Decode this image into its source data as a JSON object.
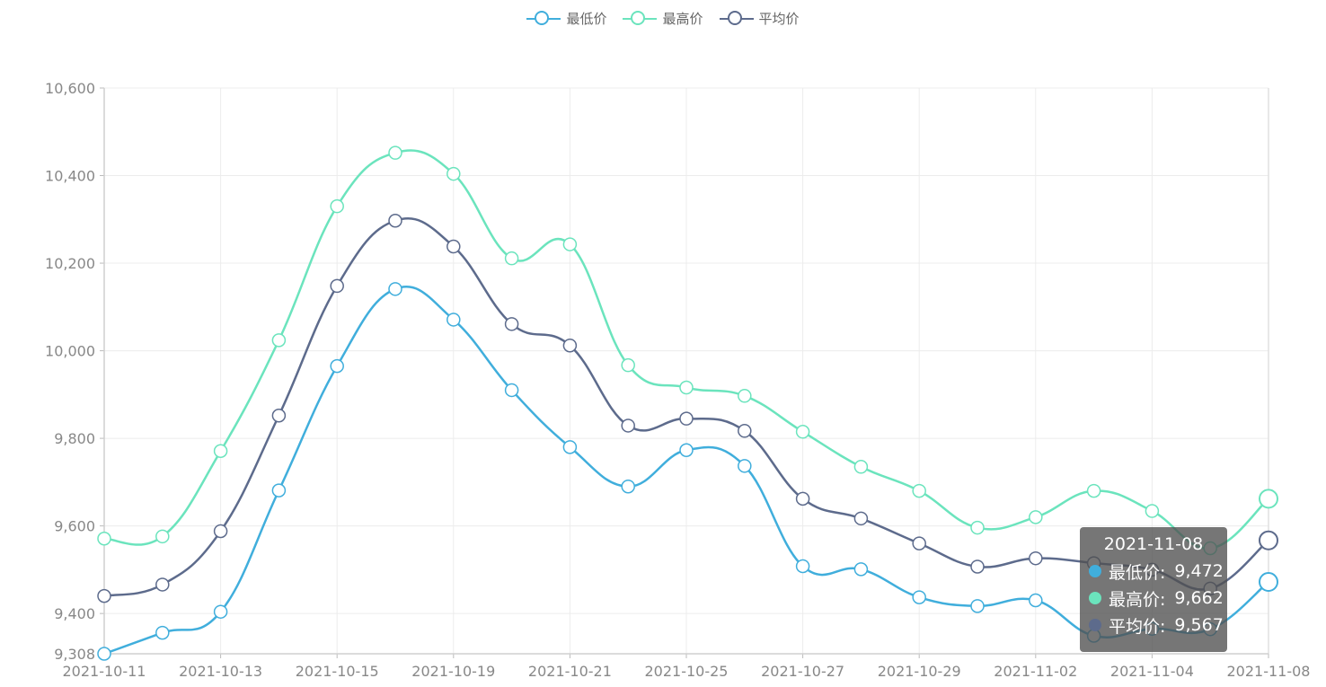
{
  "legend": [
    {
      "label": "最低价",
      "color": "#40aedc"
    },
    {
      "label": "最高价",
      "color": "#6be4bd"
    },
    {
      "label": "平均价",
      "color": "#5d6b8c"
    }
  ],
  "tooltip": {
    "title": "2021-11-08",
    "rows": [
      {
        "label": "最低价:",
        "value": "9,472",
        "color": "#40aedc"
      },
      {
        "label": "最高价:",
        "value": "9,662",
        "color": "#6be4bd"
      },
      {
        "label": "平均价:",
        "value": "9,567",
        "color": "#5d6b8c"
      }
    ]
  },
  "chart_data": {
    "type": "line",
    "x": [
      "2021-10-11",
      "2021-10-12",
      "2021-10-13",
      "2021-10-14",
      "2021-10-15",
      "2021-10-16",
      "2021-10-19",
      "2021-10-20",
      "2021-10-21",
      "2021-10-22",
      "2021-10-25",
      "2021-10-26",
      "2021-10-27",
      "2021-10-28",
      "2021-10-29",
      "2021-11-01",
      "2021-11-02",
      "2021-11-03",
      "2021-11-04",
      "2021-11-05",
      "2021-11-08"
    ],
    "x_tick_labels": [
      "2021-10-11",
      "2021-10-13",
      "2021-10-15",
      "2021-10-19",
      "2021-10-21",
      "2021-10-25",
      "2021-10-27",
      "2021-10-29",
      "2021-11-02",
      "2021-11-04",
      "2021-11-08"
    ],
    "y_tick_labels": [
      "9,308",
      "9,400",
      "9,600",
      "9,800",
      "10,000",
      "10,200",
      "10,400",
      "10,600"
    ],
    "ylim": [
      9308,
      10600
    ],
    "grid": true,
    "legend_position": "top-center",
    "series": [
      {
        "name": "最低价",
        "color": "#40aedc",
        "values": [
          9308,
          9356,
          9404,
          9681,
          9965,
          10141,
          10071,
          9910,
          9780,
          9690,
          9773,
          9737,
          9508,
          9501,
          9437,
          9417,
          9430,
          9349,
          9365,
          9364,
          9472
        ]
      },
      {
        "name": "最高价",
        "color": "#6be4bd",
        "values": [
          9571,
          9576,
          9771,
          10024,
          10330,
          10452,
          10404,
          10211,
          10243,
          9967,
          9916,
          9897,
          9815,
          9735,
          9680,
          9596,
          9620,
          9680,
          9634,
          9549,
          9662
        ]
      },
      {
        "name": "平均价",
        "color": "#5d6b8c",
        "values": [
          9440,
          9466,
          9588,
          9852,
          10148,
          10297,
          10238,
          10061,
          10012,
          9829,
          9845,
          9817,
          9662,
          9617,
          9560,
          9507,
          9526,
          9515,
          9500,
          9457,
          9567
        ]
      }
    ]
  }
}
